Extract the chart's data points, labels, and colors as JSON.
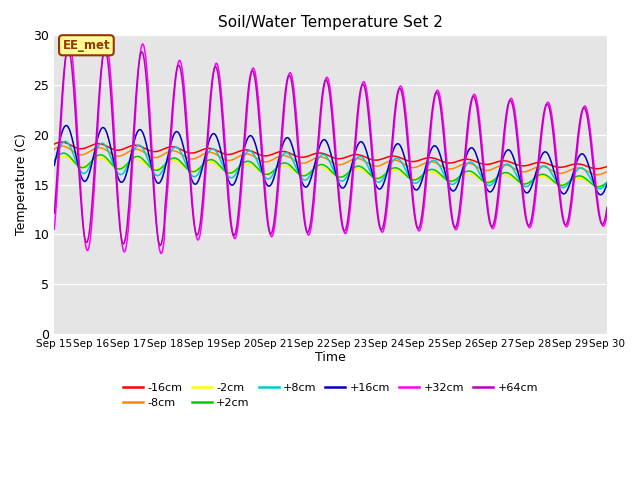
{
  "title": "Soil/Water Temperature Set 2",
  "xlabel": "Time",
  "ylabel": "Temperature (C)",
  "ylim": [
    0,
    30
  ],
  "x_tick_labels": [
    "Sep 15",
    "Sep 16",
    "Sep 17",
    "Sep 18",
    "Sep 19",
    "Sep 20",
    "Sep 21",
    "Sep 22",
    "Sep 23",
    "Sep 24",
    "Sep 25",
    "Sep 26",
    "Sep 27",
    "Sep 28",
    "Sep 29",
    "Sep 30"
  ],
  "annotation_text": "EE_met",
  "annotation_box_color": "#ffff99",
  "annotation_box_edge": "#993300",
  "annotation_text_color": "#993300",
  "bg_color": "#e5e5e5",
  "series": [
    {
      "label": "-16cm",
      "color": "#ff0000",
      "depth": -16
    },
    {
      "label": "-8cm",
      "color": "#ff8800",
      "depth": -8
    },
    {
      "label": "-2cm",
      "color": "#ffff00",
      "depth": -2
    },
    {
      "label": "+2cm",
      "color": "#00cc00",
      "depth": 2
    },
    {
      "label": "+8cm",
      "color": "#00cccc",
      "depth": 8
    },
    {
      "label": "+16cm",
      "color": "#0000bb",
      "depth": 16
    },
    {
      "label": "+32cm",
      "color": "#ff00ff",
      "depth": 32
    },
    {
      "label": "+64cm",
      "color": "#bb00bb",
      "depth": 64
    }
  ]
}
